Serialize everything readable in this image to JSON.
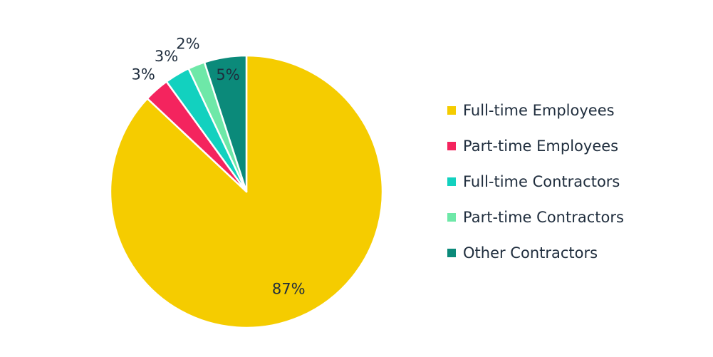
{
  "chart_data": {
    "type": "pie",
    "title": "",
    "legend_position": "right",
    "slices": [
      {
        "name": "Full-time Employees",
        "value": 87,
        "label": "87%",
        "color": "#F5CC00"
      },
      {
        "name": "Part-time Employees",
        "value": 3,
        "label": "3%",
        "color": "#F4245E"
      },
      {
        "name": "Full-time Contractors",
        "value": 3,
        "label": "3%",
        "color": "#12D1BF"
      },
      {
        "name": "Part-time Contractors",
        "value": 2,
        "label": "2%",
        "color": "#6EE8A8"
      },
      {
        "name": "Other Contractors",
        "value": 5,
        "label": "5%",
        "color": "#0B8A7A"
      }
    ],
    "legend_order": [
      0,
      1,
      2,
      3,
      4
    ]
  }
}
